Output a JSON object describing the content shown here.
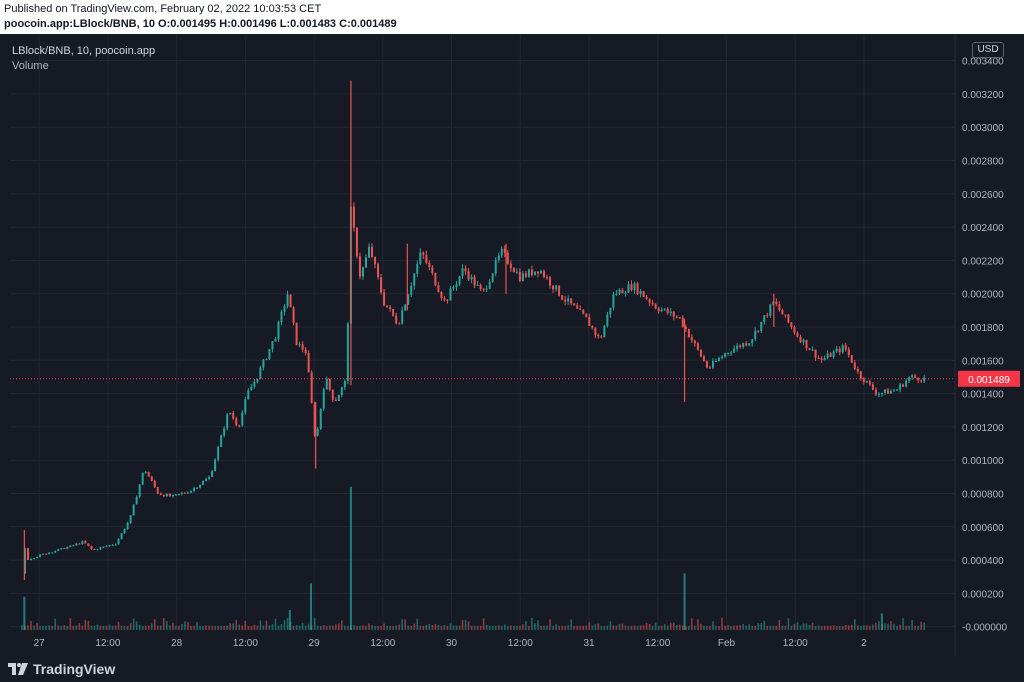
{
  "header": {
    "published": "Published on TradingView.com, February 02, 2022 10:03:53 CET",
    "symbol_info": "poocoin.app:LBlock/BNB, 10",
    "o_label": "O:",
    "o_value": "0.001495",
    "h_label": "H:",
    "h_value": "0.001496",
    "l_label": "L:",
    "l_value": "0.001483",
    "c_label": "C:",
    "c_value": "0.001489"
  },
  "legend": {
    "symbol": "LBlock/BNB, 10, poocoin.app",
    "volume": "Volume"
  },
  "currency_badge": "USD",
  "brand": {
    "name": "TradingView",
    "icon": "tradingview-logo-icon"
  },
  "colors": {
    "background": "#161a25",
    "up": "#26a69a",
    "down": "#ef5350",
    "last_price": "#f23645",
    "grid": "#232733",
    "text": "#b2b5be"
  },
  "chart_data": {
    "type": "candlestick",
    "symbol": "LBlock/BNB",
    "interval": "10",
    "ylim": [
      -2e-05,
      0.00356
    ],
    "y_ticks": [
      "0.003400",
      "0.003200",
      "0.003000",
      "0.002800",
      "0.002600",
      "0.002400",
      "0.002200",
      "0.002000",
      "0.001800",
      "0.001600",
      "0.001400",
      "0.001200",
      "0.001000",
      "0.000800",
      "0.000600",
      "0.000400",
      "0.000200",
      "-0.000000"
    ],
    "x_ticks": [
      "27",
      "12:00",
      "28",
      "12:00",
      "29",
      "12:00",
      "30",
      "12:00",
      "31",
      "12:00",
      "Feb",
      "12:00",
      "2"
    ],
    "last_price": "0.001489",
    "last_price_value": 0.001489,
    "price_path": [
      {
        "t": 0.0,
        "p": 0.00032
      },
      {
        "t": 0.04,
        "p": 0.00058
      },
      {
        "t": 0.08,
        "p": 0.0004
      },
      {
        "t": 0.5,
        "p": 0.00044
      },
      {
        "t": 1.0,
        "p": 0.00048
      },
      {
        "t": 1.3,
        "p": 0.00051
      },
      {
        "t": 1.5,
        "p": 0.00046
      },
      {
        "t": 2.0,
        "p": 0.0005
      },
      {
        "t": 2.3,
        "p": 0.00065
      },
      {
        "t": 2.6,
        "p": 0.00095
      },
      {
        "t": 2.9,
        "p": 0.0008
      },
      {
        "t": 3.2,
        "p": 0.00078
      },
      {
        "t": 3.6,
        "p": 0.00082
      },
      {
        "t": 4.0,
        "p": 0.0009
      },
      {
        "t": 4.4,
        "p": 0.0013
      },
      {
        "t": 4.6,
        "p": 0.0012
      },
      {
        "t": 4.8,
        "p": 0.0014
      },
      {
        "t": 5.0,
        "p": 0.0015
      },
      {
        "t": 5.4,
        "p": 0.00175
      },
      {
        "t": 5.65,
        "p": 0.002
      },
      {
        "t": 5.85,
        "p": 0.0017
      },
      {
        "t": 6.05,
        "p": 0.00165
      },
      {
        "t": 6.25,
        "p": 0.0011
      },
      {
        "t": 6.45,
        "p": 0.0015
      },
      {
        "t": 6.65,
        "p": 0.00135
      },
      {
        "t": 6.9,
        "p": 0.00148
      },
      {
        "t": 7.0,
        "p": 0.0025
      },
      {
        "t": 7.2,
        "p": 0.0021
      },
      {
        "t": 7.4,
        "p": 0.00228
      },
      {
        "t": 7.7,
        "p": 0.00195
      },
      {
        "t": 8.0,
        "p": 0.00182
      },
      {
        "t": 8.5,
        "p": 0.00225
      },
      {
        "t": 9.0,
        "p": 0.00195
      },
      {
        "t": 9.4,
        "p": 0.00215
      },
      {
        "t": 9.8,
        "p": 0.002
      },
      {
        "t": 10.2,
        "p": 0.00225
      },
      {
        "t": 10.6,
        "p": 0.0021
      },
      {
        "t": 11.0,
        "p": 0.00215
      },
      {
        "t": 11.5,
        "p": 0.00198
      },
      {
        "t": 12.0,
        "p": 0.00185
      },
      {
        "t": 12.3,
        "p": 0.00172
      },
      {
        "t": 12.6,
        "p": 0.002
      },
      {
        "t": 13.0,
        "p": 0.00205
      },
      {
        "t": 13.5,
        "p": 0.00192
      },
      {
        "t": 14.0,
        "p": 0.00185
      },
      {
        "t": 14.3,
        "p": 0.0017
      },
      {
        "t": 14.6,
        "p": 0.00155
      },
      {
        "t": 15.0,
        "p": 0.00165
      },
      {
        "t": 15.5,
        "p": 0.00172
      },
      {
        "t": 16.0,
        "p": 0.00195
      },
      {
        "t": 16.5,
        "p": 0.00175
      },
      {
        "t": 17.0,
        "p": 0.0016
      },
      {
        "t": 17.5,
        "p": 0.00168
      },
      {
        "t": 17.8,
        "p": 0.00152
      },
      {
        "t": 18.2,
        "p": 0.0014
      },
      {
        "t": 18.6,
        "p": 0.00142
      },
      {
        "t": 18.9,
        "p": 0.0015
      },
      {
        "t": 19.2,
        "p": 0.001489
      }
    ],
    "spikes": [
      {
        "t": 0.05,
        "high": 0.00058,
        "low": 0.00028
      },
      {
        "t": 6.25,
        "high": 0.00135,
        "low": 0.00095
      },
      {
        "t": 7.0,
        "high": 0.00328,
        "low": 0.00145
      },
      {
        "t": 8.2,
        "high": 0.0023,
        "low": 0.0019
      },
      {
        "t": 10.3,
        "high": 0.0023,
        "low": 0.002
      },
      {
        "t": 14.1,
        "high": 0.00185,
        "low": 0.00135
      },
      {
        "t": 16.0,
        "high": 0.002,
        "low": 0.0018
      }
    ],
    "volume_spikes": [
      {
        "t": 7.0,
        "v": 0.00084
      },
      {
        "t": 6.15,
        "v": 0.00026
      },
      {
        "t": 14.1,
        "v": 0.00032
      },
      {
        "t": 0.05,
        "v": 0.00018
      },
      {
        "t": 5.7,
        "v": 0.0001
      },
      {
        "t": 18.3,
        "v": 8e-05
      }
    ]
  }
}
